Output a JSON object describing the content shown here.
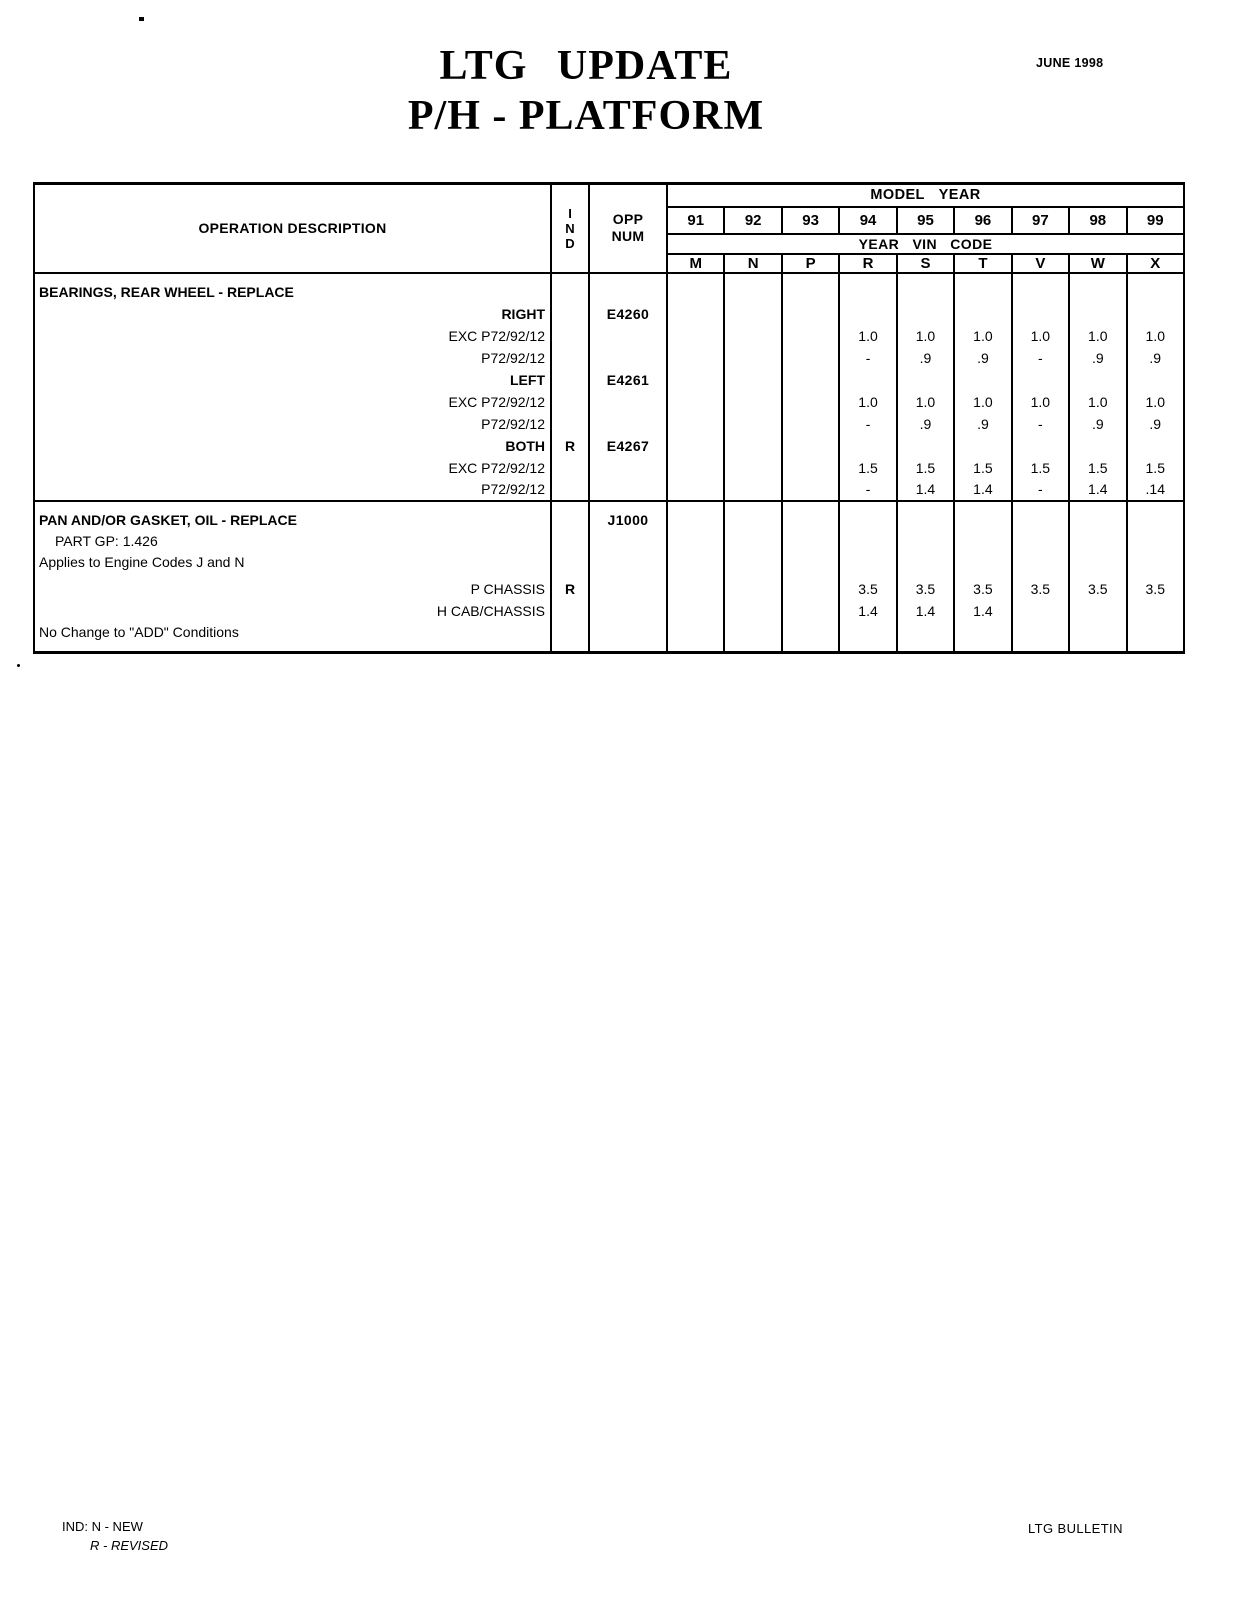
{
  "page": {
    "title_line1": "LTG UPDATE",
    "title_line2": "P/H - PLATFORM",
    "date": "JUNE 1998"
  },
  "table": {
    "header": {
      "operation": "OPERATION DESCRIPTION",
      "ind_lines": [
        "I",
        "N",
        "D"
      ],
      "opp_lines": [
        "OPP",
        "NUM"
      ],
      "model_year": "MODEL YEAR",
      "years": [
        "91",
        "92",
        "93",
        "94",
        "95",
        "96",
        "97",
        "98",
        "99"
      ],
      "vin_code_label": "YEAR VIN CODE",
      "vin_codes": [
        "M",
        "N",
        "P",
        "R",
        "S",
        "T",
        "V",
        "W",
        "X"
      ]
    },
    "block1": [
      {
        "d": "BEARINGS, REAR WHEEL - REPLACE",
        "ind": "",
        "opp": "",
        "v": [
          "",
          "",
          "",
          "",
          "",
          "",
          "",
          "",
          ""
        ]
      },
      {
        "d": "RIGHT",
        "ind": "",
        "opp": "E4260",
        "v": [
          "",
          "",
          "",
          "",
          "",
          "",
          "",
          "",
          ""
        ]
      },
      {
        "d": "EXC P72/92/12",
        "ind": "",
        "opp": "",
        "v": [
          "",
          "",
          "",
          "1.0",
          "1.0",
          "1.0",
          "1.0",
          "1.0",
          "1.0"
        ]
      },
      {
        "d": "P72/92/12",
        "ind": "",
        "opp": "",
        "v": [
          "",
          "",
          "",
          "-",
          ".9",
          ".9",
          "-",
          ".9",
          ".9"
        ]
      },
      {
        "d": "LEFT",
        "ind": "",
        "opp": "E4261",
        "v": [
          "",
          "",
          "",
          "",
          "",
          "",
          "",
          "",
          ""
        ]
      },
      {
        "d": "EXC P72/92/12",
        "ind": "",
        "opp": "",
        "v": [
          "",
          "",
          "",
          "1.0",
          "1.0",
          "1.0",
          "1.0",
          "1.0",
          "1.0"
        ]
      },
      {
        "d": "P72/92/12",
        "ind": "",
        "opp": "",
        "v": [
          "",
          "",
          "",
          "-",
          ".9",
          ".9",
          "-",
          ".9",
          ".9"
        ]
      },
      {
        "d": "BOTH",
        "ind": "R",
        "opp": "E4267",
        "v": [
          "",
          "",
          "",
          "",
          "",
          "",
          "",
          "",
          ""
        ]
      },
      {
        "d": "EXC P72/92/12",
        "ind": "",
        "opp": "",
        "v": [
          "",
          "",
          "",
          "1.5",
          "1.5",
          "1.5",
          "1.5",
          "1.5",
          "1.5"
        ]
      },
      {
        "d": "P72/92/12",
        "ind": "",
        "opp": "",
        "v": [
          "",
          "",
          "",
          "-",
          "1.4",
          "1.4",
          "-",
          "1.4",
          ".14"
        ]
      }
    ],
    "block2": [
      {
        "d": "PAN AND/OR GASKET, OIL - REPLACE",
        "ind": "",
        "opp": "J1000",
        "v": [
          "",
          "",
          "",
          "",
          "",
          "",
          "",
          "",
          ""
        ]
      },
      {
        "d": "PART GP: 1.426",
        "ind": "",
        "opp": "",
        "v": [
          "",
          "",
          "",
          "",
          "",
          "",
          "",
          "",
          ""
        ]
      },
      {
        "d": "Applies to Engine Codes J and N",
        "ind": "",
        "opp": "",
        "v": [
          "",
          "",
          "",
          "",
          "",
          "",
          "",
          "",
          ""
        ]
      },
      {
        "d": "P CHASSIS",
        "ind": "R",
        "opp": "",
        "v": [
          "",
          "",
          "",
          "3.5",
          "3.5",
          "3.5",
          "3.5",
          "3.5",
          "3.5"
        ]
      },
      {
        "d": "H CAB/CHASSIS",
        "ind": "",
        "opp": "",
        "v": [
          "",
          "",
          "",
          "1.4",
          "1.4",
          "1.4",
          "",
          "",
          ""
        ]
      },
      {
        "d": "No Change to \"ADD\" Conditions",
        "ind": "",
        "opp": "",
        "v": [
          "",
          "",
          "",
          "",
          "",
          "",
          "",
          "",
          ""
        ]
      }
    ]
  },
  "footer": {
    "legend_line1": "IND: N - NEW",
    "legend_line2": "R - REVISED",
    "bulletin": "LTG BULLETIN"
  }
}
